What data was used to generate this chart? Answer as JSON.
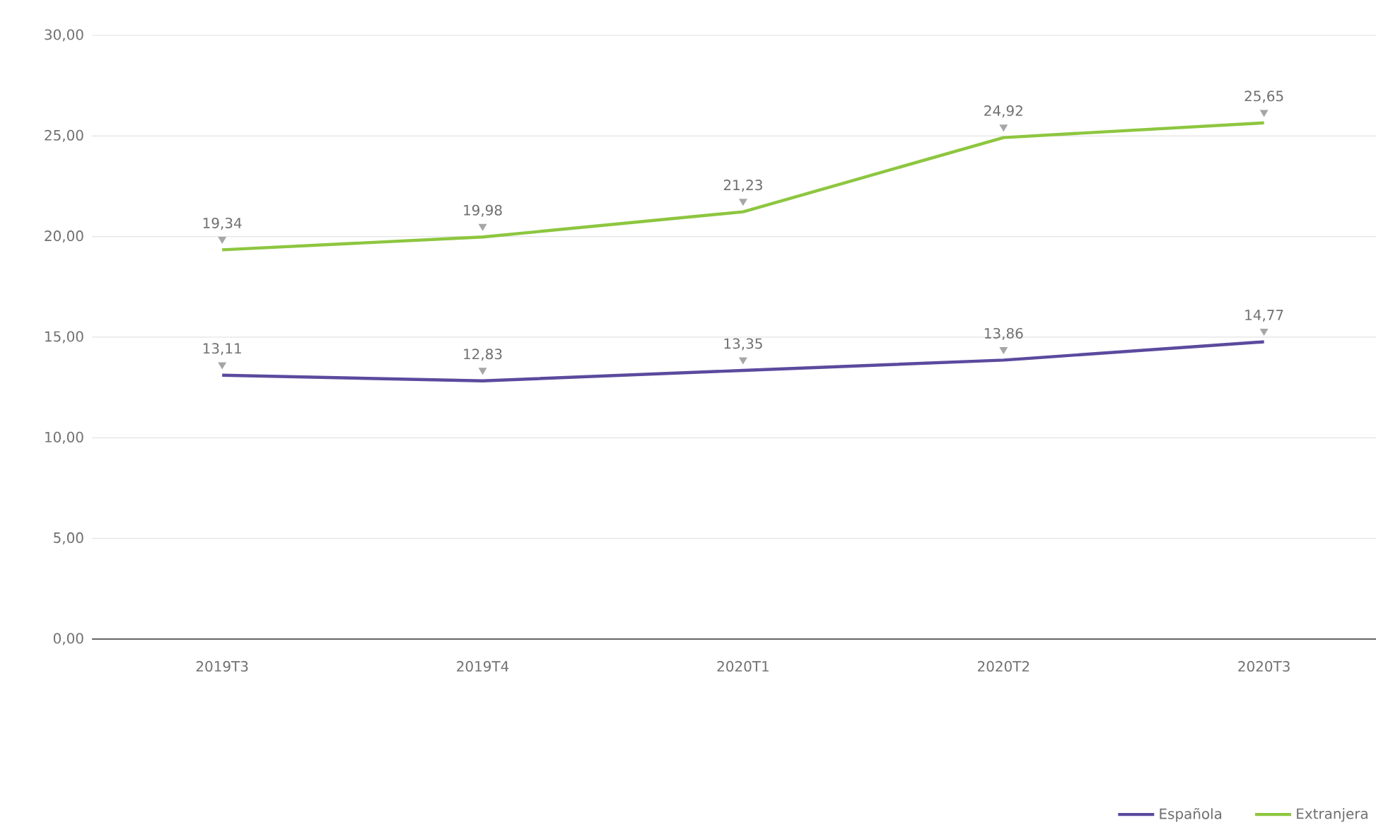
{
  "chart_data": {
    "type": "line",
    "categories": [
      "2019T3",
      "2019T4",
      "2020T1",
      "2020T2",
      "2020T3"
    ],
    "series": [
      {
        "name": "Española",
        "color": "#5b4a9e",
        "values": [
          13.11,
          12.83,
          13.35,
          13.86,
          14.77
        ],
        "value_labels": [
          "13,11",
          "12,83",
          "13,35",
          "13,86",
          "14,77"
        ]
      },
      {
        "name": "Extranjera",
        "color": "#8dc63f",
        "values": [
          19.34,
          19.98,
          21.23,
          24.92,
          25.65
        ],
        "value_labels": [
          "19,34",
          "19,98",
          "21,23",
          "24,92",
          "25,65"
        ]
      }
    ],
    "ylim": [
      0,
      30
    ],
    "yticks": [
      {
        "value": 0,
        "label": "0,00"
      },
      {
        "value": 5,
        "label": "5,00"
      },
      {
        "value": 10,
        "label": "10,00"
      },
      {
        "value": 15,
        "label": "15,00"
      },
      {
        "value": 20,
        "label": "20,00"
      },
      {
        "value": 25,
        "label": "25,00"
      },
      {
        "value": 30,
        "label": "30,00"
      }
    ],
    "grid": "y",
    "legend": "bottom right",
    "marker": "none",
    "line_style": "solid"
  }
}
